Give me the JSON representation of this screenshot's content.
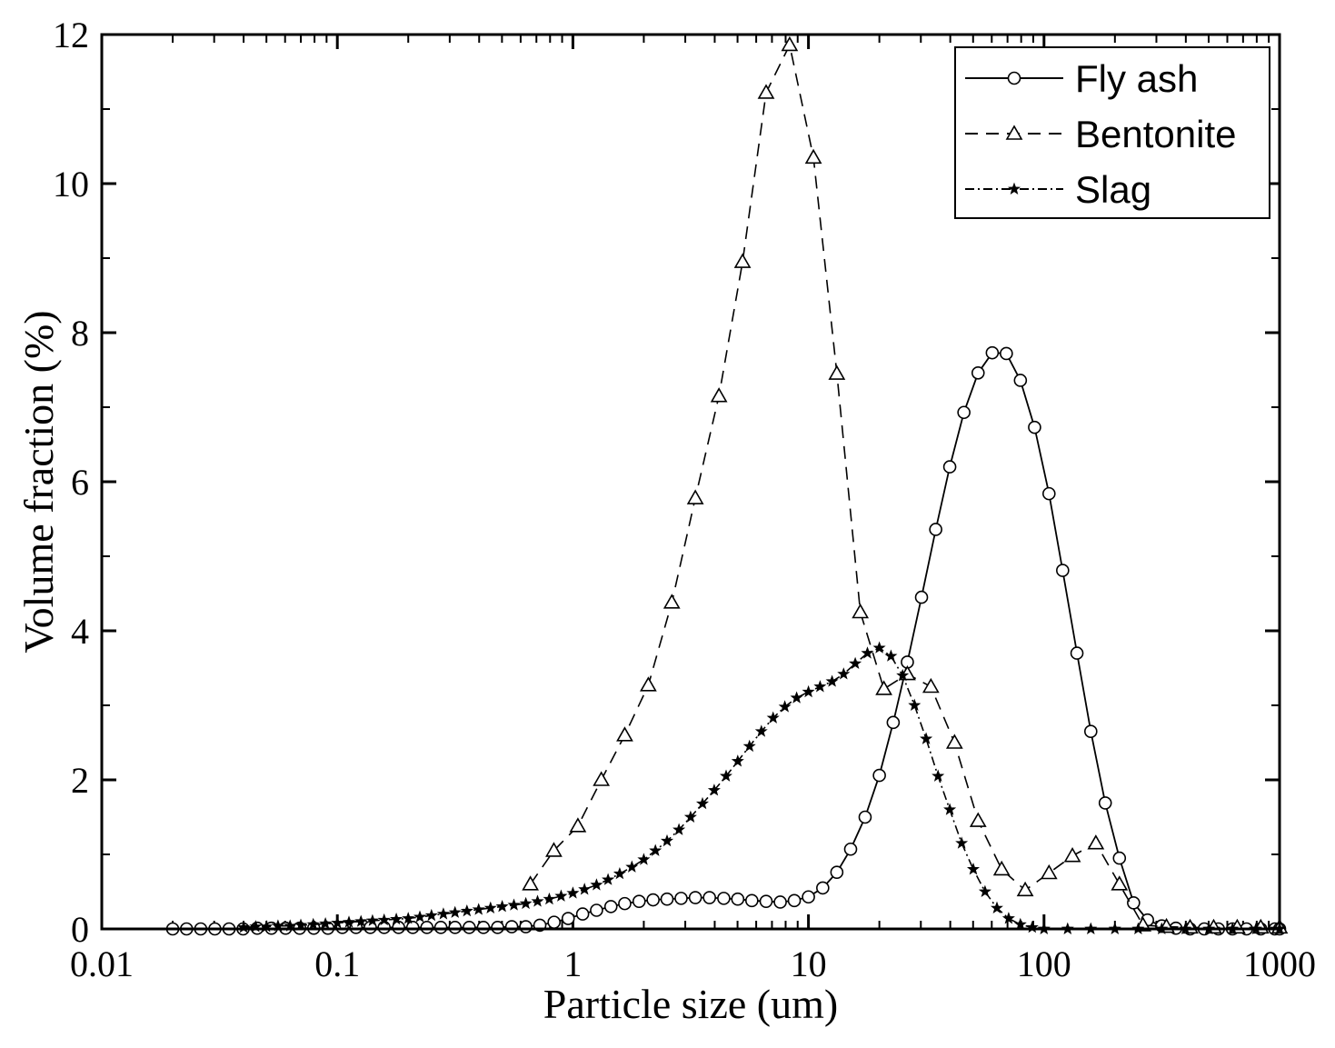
{
  "chart_data": {
    "type": "line",
    "title": "",
    "xlabel": "Particle size (um)",
    "ylabel": "Volume fraction (%)",
    "xscale": "log",
    "xlim": [
      0.01,
      1000
    ],
    "ylim": [
      0,
      12
    ],
    "x_ticks": [
      0.01,
      0.1,
      1,
      10,
      100,
      1000
    ],
    "x_tick_labels": [
      "0.01",
      "0.1",
      "1",
      "10",
      "100",
      "1000"
    ],
    "y_ticks": [
      0,
      2,
      4,
      6,
      8,
      10,
      12
    ],
    "y_tick_labels": [
      "0",
      "2",
      "4",
      "6",
      "8",
      "10",
      "12"
    ],
    "legend_position": "top-right",
    "series": [
      {
        "name": "Fly ash",
        "line_style": "solid",
        "marker": "open-circle",
        "x": [
          0.02,
          0.0229,
          0.0263,
          0.0302,
          0.0347,
          0.0398,
          0.0457,
          0.0525,
          0.0603,
          0.0692,
          0.0794,
          0.0912,
          0.105,
          0.12,
          0.138,
          0.158,
          0.182,
          0.209,
          0.24,
          0.275,
          0.316,
          0.363,
          0.417,
          0.479,
          0.55,
          0.631,
          0.724,
          0.832,
          0.955,
          1.1,
          1.26,
          1.45,
          1.66,
          1.91,
          2.19,
          2.51,
          2.88,
          3.31,
          3.8,
          4.37,
          5.01,
          5.75,
          6.61,
          7.59,
          8.71,
          10.0,
          11.5,
          13.2,
          15.1,
          17.4,
          20.0,
          22.9,
          26.3,
          30.2,
          34.7,
          39.8,
          45.7,
          52.5,
          60.3,
          69.2,
          79.4,
          91.2,
          105,
          120,
          138,
          158,
          182,
          209,
          240,
          275,
          316,
          363,
          417,
          479,
          550,
          631,
          724,
          832,
          955,
          1000
        ],
        "y": [
          0.0,
          0.0,
          0.0,
          0.0,
          0.0,
          0.0,
          0.01,
          0.01,
          0.01,
          0.01,
          0.01,
          0.01,
          0.02,
          0.02,
          0.02,
          0.02,
          0.02,
          0.02,
          0.02,
          0.02,
          0.02,
          0.02,
          0.02,
          0.02,
          0.03,
          0.03,
          0.05,
          0.09,
          0.14,
          0.2,
          0.25,
          0.3,
          0.34,
          0.37,
          0.39,
          0.4,
          0.41,
          0.42,
          0.42,
          0.41,
          0.4,
          0.38,
          0.37,
          0.36,
          0.38,
          0.43,
          0.55,
          0.76,
          1.07,
          1.5,
          2.06,
          2.77,
          3.58,
          4.45,
          5.36,
          6.2,
          6.93,
          7.46,
          7.73,
          7.72,
          7.36,
          6.73,
          5.84,
          4.81,
          3.7,
          2.65,
          1.69,
          0.95,
          0.35,
          0.12,
          0.04,
          0.01,
          0.0,
          0.0,
          0.0,
          0.0,
          0.0,
          0.0,
          0.0,
          0.0
        ]
      },
      {
        "name": "Bentonite",
        "line_style": "dashed",
        "marker": "open-triangle",
        "x": [
          0.66,
          0.83,
          1.05,
          1.32,
          1.66,
          2.09,
          2.63,
          3.31,
          4.17,
          5.25,
          6.61,
          8.32,
          10.5,
          13.2,
          16.6,
          20.9,
          26.3,
          33.1,
          41.7,
          52.5,
          66.1,
          83.2,
          105,
          132,
          166,
          209,
          263,
          331,
          417,
          525,
          661,
          832,
          1000
        ],
        "y": [
          0.6,
          1.05,
          1.38,
          2.0,
          2.6,
          3.27,
          4.38,
          5.78,
          7.15,
          8.95,
          11.22,
          11.86,
          10.35,
          7.45,
          4.25,
          3.22,
          3.42,
          3.25,
          2.5,
          1.45,
          0.8,
          0.52,
          0.75,
          0.98,
          1.15,
          0.6,
          0.05,
          0.03,
          0.02,
          0.02,
          0.02,
          0.02,
          0.02
        ]
      },
      {
        "name": "Slag",
        "line_style": "dash-dot",
        "marker": "star",
        "x": [
          0.04,
          0.045,
          0.05,
          0.056,
          0.063,
          0.07,
          0.079,
          0.089,
          0.1,
          0.112,
          0.126,
          0.141,
          0.158,
          0.178,
          0.2,
          0.224,
          0.251,
          0.282,
          0.316,
          0.355,
          0.398,
          0.447,
          0.501,
          0.562,
          0.631,
          0.708,
          0.794,
          0.891,
          1.0,
          1.12,
          1.26,
          1.41,
          1.58,
          1.78,
          2.0,
          2.24,
          2.51,
          2.82,
          3.16,
          3.55,
          3.98,
          4.47,
          5.01,
          5.62,
          6.31,
          7.08,
          7.94,
          8.91,
          10.0,
          11.2,
          12.6,
          14.1,
          15.8,
          17.8,
          20.0,
          22.4,
          25.1,
          28.2,
          31.6,
          35.5,
          39.8,
          44.7,
          50.1,
          56.2,
          63.1,
          70.8,
          79.4,
          89.1,
          100,
          126,
          158,
          200,
          251,
          316,
          398,
          501,
          631,
          794,
          1000
        ],
        "y": [
          0.02,
          0.03,
          0.03,
          0.04,
          0.04,
          0.05,
          0.06,
          0.07,
          0.08,
          0.09,
          0.1,
          0.11,
          0.12,
          0.13,
          0.14,
          0.16,
          0.18,
          0.2,
          0.22,
          0.24,
          0.26,
          0.28,
          0.3,
          0.32,
          0.34,
          0.37,
          0.4,
          0.44,
          0.48,
          0.53,
          0.59,
          0.66,
          0.74,
          0.83,
          0.93,
          1.05,
          1.18,
          1.33,
          1.5,
          1.68,
          1.86,
          2.05,
          2.25,
          2.45,
          2.65,
          2.83,
          2.98,
          3.1,
          3.18,
          3.25,
          3.32,
          3.42,
          3.56,
          3.7,
          3.77,
          3.66,
          3.4,
          3.0,
          2.55,
          2.05,
          1.6,
          1.15,
          0.8,
          0.5,
          0.28,
          0.14,
          0.06,
          0.02,
          0.0,
          0.0,
          0.0,
          0.0,
          0.0,
          0.0,
          0.0,
          0.0,
          0.0,
          0.0,
          0.0
        ]
      }
    ]
  }
}
